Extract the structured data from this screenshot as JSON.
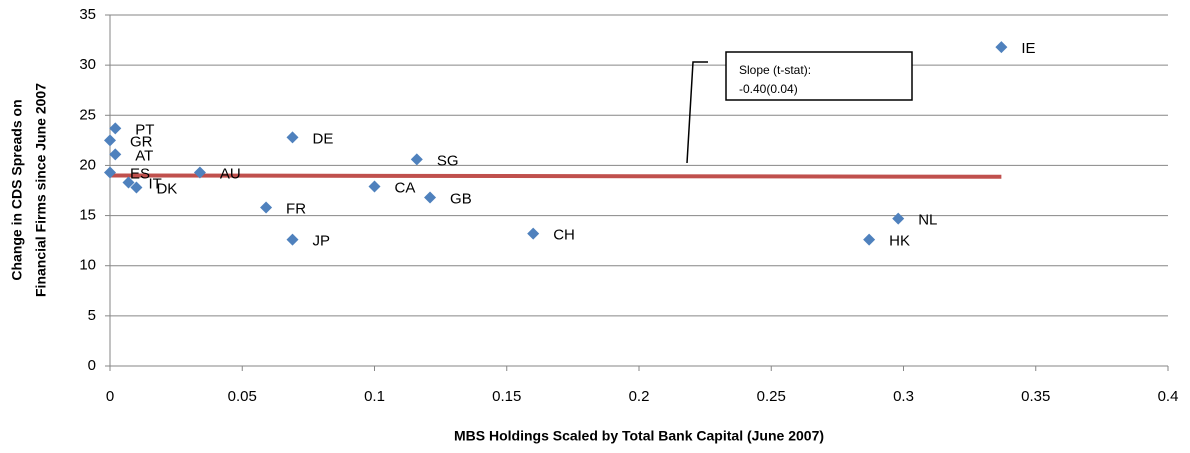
{
  "chart_data": {
    "type": "scatter",
    "x_label": "MBS Holdings Scaled by Total Bank Capital (June 2007)",
    "y_label": [
      "Change in CDS Spreads on",
      "Financial Firms since June 2007"
    ],
    "x": [
      0.002,
      0.0,
      0.002,
      0.0,
      0.007,
      0.01,
      0.034,
      0.069,
      0.059,
      0.069,
      0.1,
      0.116,
      0.121,
      0.16,
      0.287,
      0.298,
      0.337
    ],
    "values": [
      23.7,
      22.5,
      21.1,
      19.3,
      18.3,
      17.8,
      19.3,
      22.8,
      15.8,
      12.6,
      17.9,
      20.6,
      16.8,
      13.2,
      12.6,
      14.7,
      31.8
    ],
    "point_labels": [
      "PT",
      "GR",
      "AT",
      "ES",
      "IT",
      "DK",
      "AU",
      "DE",
      "FR",
      "JP",
      "CA",
      "SG",
      "GB",
      "CH",
      "HK",
      "NL",
      "IE"
    ],
    "color": "#4f81bd",
    "trendline": {
      "x": [
        0,
        0.337
      ],
      "values": [
        19.0,
        18.87
      ],
      "color": "#c0504d"
    },
    "annotation": [
      "Slope (t-stat):",
      "-0.40(0.04)"
    ],
    "xlim": [
      0,
      0.4
    ],
    "xticks": [
      0,
      0.05,
      0.1,
      0.15,
      0.2,
      0.25,
      0.3,
      0.35,
      0.4
    ],
    "ylim": [
      0,
      35
    ],
    "yticks": [
      0,
      5,
      10,
      15,
      20,
      25,
      30,
      35
    ],
    "grid": true
  }
}
